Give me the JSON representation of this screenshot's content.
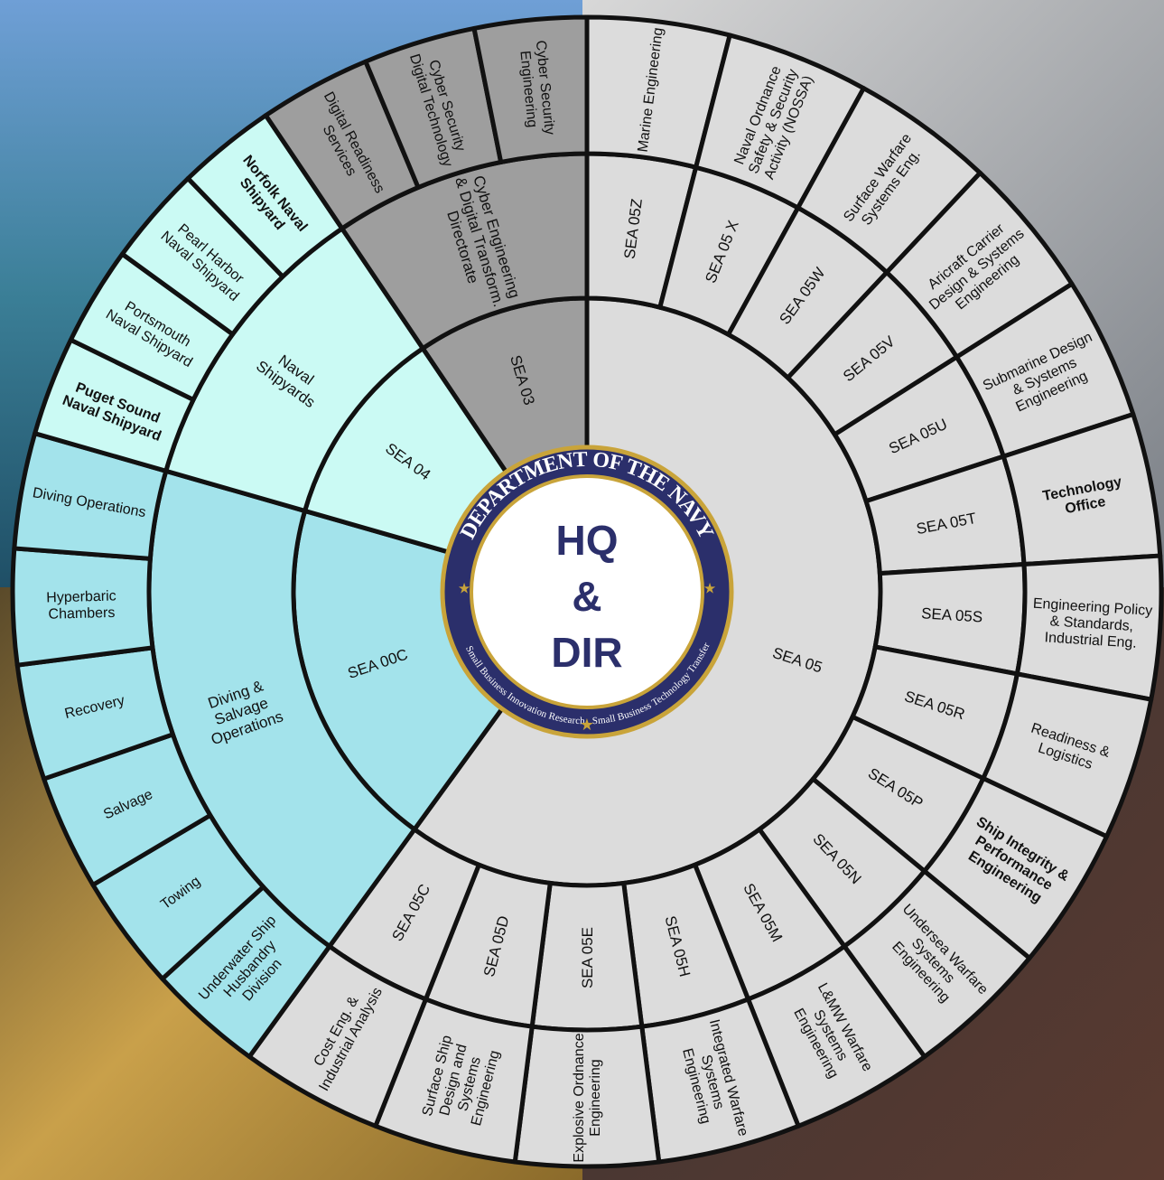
{
  "center": {
    "lines": [
      "HQ",
      "&",
      "DIR"
    ],
    "seal_top": "DEPARTMENT OF THE NAVY",
    "seal_bottom_left": "Small Business Innovation Research",
    "seal_bottom_right": "Small Business Technology Transfer"
  },
  "groups": [
    {
      "code": "SEA 05",
      "color": "#dcdcdc",
      "divisions": [
        {
          "label": [
            "SEA 05Z"
          ],
          "offices": [
            {
              "label": [
                "Marine Engineering"
              ]
            }
          ]
        },
        {
          "label": [
            "SEA 05 X"
          ],
          "offices": [
            {
              "label": [
                "Naval Ordnance",
                "Safety & Security",
                "Activity (NOSSA)"
              ]
            }
          ]
        },
        {
          "label": [
            "SEA 05W"
          ],
          "offices": [
            {
              "label": [
                "Surface Warfare",
                "Systems Eng."
              ]
            }
          ]
        },
        {
          "label": [
            "SEA 05V"
          ],
          "offices": [
            {
              "label": [
                "Aricraft Carrier",
                "Design & Systems",
                "Engineering"
              ]
            }
          ]
        },
        {
          "label": [
            "SEA 05U"
          ],
          "offices": [
            {
              "label": [
                "Submarine Design",
                "& Systems",
                "Engineering"
              ]
            }
          ]
        },
        {
          "label": [
            "SEA 05T"
          ],
          "offices": [
            {
              "label": [
                "Technology",
                "Office"
              ],
              "bold": true
            }
          ]
        },
        {
          "label": [
            "SEA 05S"
          ],
          "offices": [
            {
              "label": [
                "Engineering Policy",
                "& Standards,",
                "Industrial Eng."
              ]
            }
          ]
        },
        {
          "label": [
            "SEA 05R"
          ],
          "offices": [
            {
              "label": [
                "Readiness &",
                "Logistics"
              ]
            }
          ]
        },
        {
          "label": [
            "SEA 05P"
          ],
          "offices": [
            {
              "label": [
                "Ship Integrity &",
                "Performance",
                "Engineering"
              ],
              "bold": true
            }
          ]
        },
        {
          "label": [
            "SEA 05N"
          ],
          "offices": [
            {
              "label": [
                "Undersea Warfare",
                "Systems",
                "Engineering"
              ]
            }
          ]
        },
        {
          "label": [
            "SEA 05M"
          ],
          "offices": [
            {
              "label": [
                "L&MW Warfare",
                "Systems",
                "Engineering"
              ]
            }
          ]
        },
        {
          "label": [
            "SEA 05H"
          ],
          "offices": [
            {
              "label": [
                "Integrated Warfare",
                "Systems",
                "Engineering"
              ]
            }
          ]
        },
        {
          "label": [
            "SEA 05E"
          ],
          "offices": [
            {
              "label": [
                "Explosive Ordnance",
                "Engineering"
              ]
            }
          ]
        },
        {
          "label": [
            "SEA 05D"
          ],
          "offices": [
            {
              "label": [
                "Surface Ship",
                "Design and",
                "Systems",
                "Engineering"
              ]
            }
          ]
        },
        {
          "label": [
            "SEA 05C"
          ],
          "offices": [
            {
              "label": [
                "Cost Eng. &",
                "Industrial Analysis"
              ]
            }
          ]
        }
      ]
    },
    {
      "code": "SEA 00C",
      "color": "#a3e3eb",
      "divisions": [
        {
          "label": [
            "Diving &",
            "Salvage",
            "Operations"
          ],
          "offices": [
            {
              "label": [
                "Underwater Ship",
                "Husbandry",
                "Division"
              ]
            },
            {
              "label": [
                "Towing"
              ]
            },
            {
              "label": [
                "Salvage"
              ]
            },
            {
              "label": [
                "Recovery"
              ]
            },
            {
              "label": [
                "Hyperbaric",
                "Chambers"
              ]
            },
            {
              "label": [
                "Diving Operations"
              ]
            }
          ]
        }
      ]
    },
    {
      "code": "SEA 04",
      "color": "#cbfaf4",
      "divisions": [
        {
          "label": [
            "Naval",
            "Shipyards"
          ],
          "offices": [
            {
              "label": [
                "Puget Sound",
                "Naval Shipyard"
              ],
              "bold": true
            },
            {
              "label": [
                "Portsmouth",
                "Naval Shipyard"
              ]
            },
            {
              "label": [
                "Pearl Harbor",
                "Naval Shipyard"
              ]
            },
            {
              "label": [
                "Norfolk Naval",
                "Shipyard"
              ],
              "bold": true
            }
          ]
        }
      ]
    },
    {
      "code": "SEA 03",
      "color": "#9e9e9e",
      "divisions": [
        {
          "label": [
            "Cyber Engineering",
            "& Digital Transform.",
            "Directorate"
          ],
          "offices": [
            {
              "label": [
                "Digital Readiness",
                "Services"
              ]
            },
            {
              "label": [
                "Cyber Security",
                "Digital Technology"
              ]
            },
            {
              "label": [
                "Cyber Security",
                "Engineering"
              ]
            }
          ]
        }
      ]
    }
  ]
}
